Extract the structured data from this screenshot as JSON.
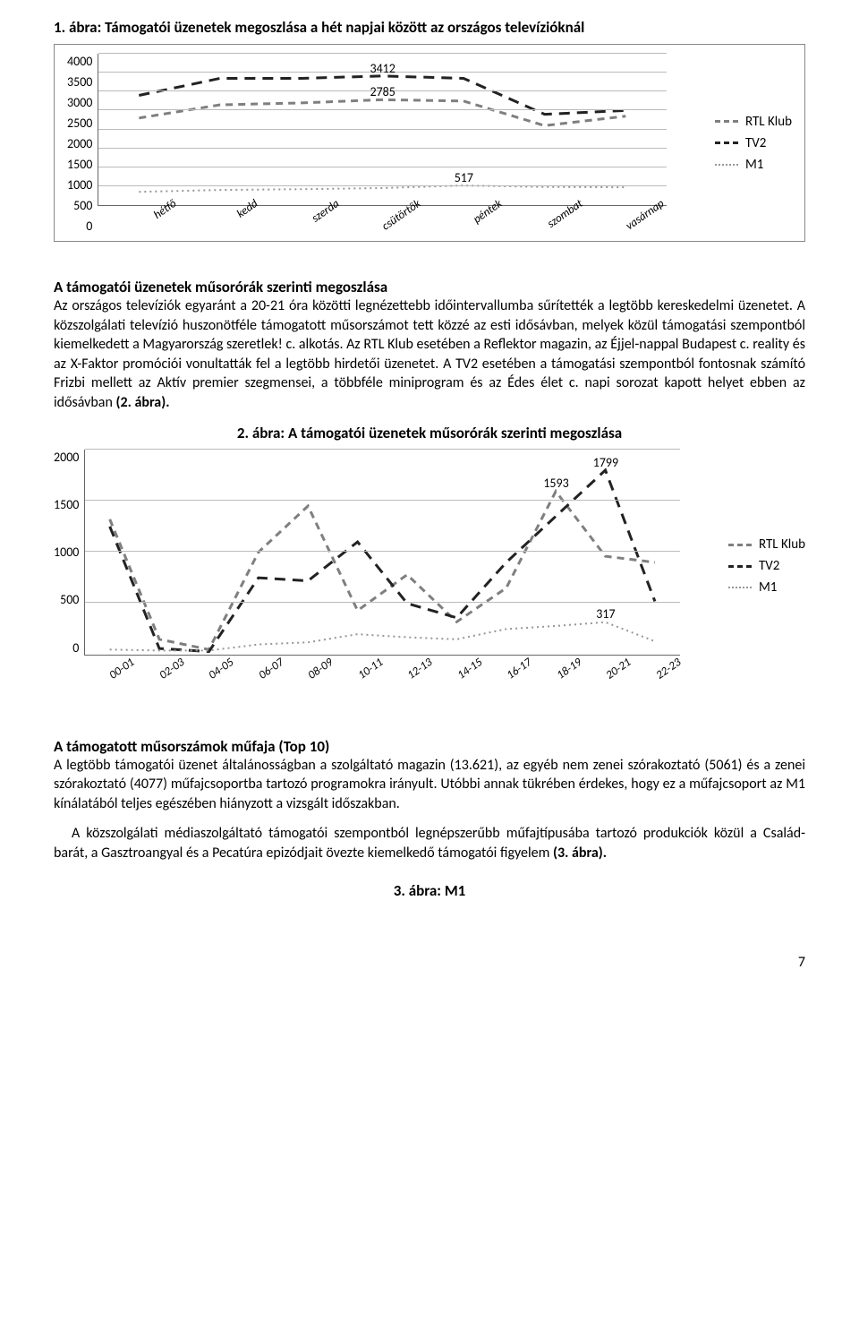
{
  "chart1": {
    "type": "line",
    "title": "1. ábra: Támogatói üzenetek megoszlása a hét napjai között az országos televízióknál",
    "label_fontsize": 14,
    "title_fontsize": 17,
    "background_color": "#ffffff",
    "grid_color": "#bbbbbb",
    "ylim": [
      0,
      4000
    ],
    "ytick_step": 500,
    "yticks": [
      "4000",
      "3500",
      "3000",
      "2500",
      "2000",
      "1500",
      "1000",
      "500",
      "0"
    ],
    "categories": [
      "hétfő",
      "kedd",
      "szerda",
      "csütörtök",
      "péntek",
      "szombat",
      "vasárnap"
    ],
    "series": {
      "RTL Klub": {
        "color": "#7f7f7f",
        "dash": "8,6",
        "width": 3,
        "values": [
          2300,
          2650,
          2700,
          2785,
          2750,
          2100,
          2350
        ]
      },
      "TV2": {
        "color": "#222222",
        "dash": "12,8",
        "width": 3,
        "values": [
          2900,
          3350,
          3350,
          3412,
          3350,
          2400,
          2500
        ]
      },
      "M1": {
        "color": "#969696",
        "dash": "2,4",
        "width": 2,
        "values": [
          350,
          400,
          420,
          450,
          517,
          480,
          470
        ]
      }
    },
    "data_labels": [
      {
        "series": "TV2",
        "index": 3,
        "text": "3412"
      },
      {
        "series": "RTL Klub",
        "index": 3,
        "text": "2785"
      },
      {
        "series": "M1",
        "index": 4,
        "text": "517"
      }
    ],
    "legend": [
      "RTL Klub",
      "TV2",
      "M1"
    ]
  },
  "section1": {
    "heading": "A támogatói üzenetek műsorórák szerinti megoszlása",
    "body": "Az országos televíziók egyaránt a 20-21 óra közötti legnézettebb időintervallumba sűrítették a legtöbb kereskedelmi üzenetet. A közszolgálati televízió huszonötféle támogatott műsorszámot tett közzé az esti idősávban, melyek közül támogatási szempontból kiemelkedett a Magyarország szeretlek! c. alkotás. Az RTL Klub esetében a Reflektor magazin, az Éjjel-nappal Budapest c. reality és az X-Faktor promóciói vonultatták fel a legtöbb hirdetői üzenetet. A TV2 esetében a támogatási szempontból fontosnak számító Frizbi mellett az Aktív premier szegmensei, a többféle miniprogram és az Édes élet c. napi sorozat kapott helyet ebben az idősávban ",
    "body_bold_tail": "(2. ábra)."
  },
  "chart2": {
    "type": "line",
    "title": "2. ábra: A támogatói üzenetek műsorórák szerinti megoszlása",
    "title_fontsize": 17,
    "label_fontsize": 13,
    "background_color": "#ffffff",
    "grid_color": "#bbbbbb",
    "ylim": [
      0,
      2000
    ],
    "ytick_step": 500,
    "yticks": [
      "2000",
      "1500",
      "1000",
      "500",
      "0"
    ],
    "categories": [
      "00-01",
      "02-03",
      "04-05",
      "06-07",
      "08-09",
      "10-11",
      "12-13",
      "14-15",
      "16-17",
      "18-19",
      "20-21",
      "22-23"
    ],
    "series": {
      "RTL Klub": {
        "color": "#7f7f7f",
        "dash": "8,6",
        "width": 3,
        "values": [
          1320,
          150,
          50,
          1000,
          1450,
          430,
          780,
          320,
          650,
          1593,
          960,
          900
        ]
      },
      "TV2": {
        "color": "#222222",
        "dash": "12,8",
        "width": 3,
        "values": [
          1250,
          60,
          30,
          750,
          720,
          1100,
          500,
          360,
          900,
          1350,
          1799,
          520
        ]
      },
      "M1": {
        "color": "#969696",
        "dash": "2,4",
        "width": 2,
        "values": [
          50,
          40,
          40,
          100,
          120,
          200,
          170,
          150,
          250,
          280,
          317,
          130
        ]
      }
    },
    "data_labels": [
      {
        "series": "TV2",
        "index": 10,
        "text": "1799"
      },
      {
        "series": "RTL Klub",
        "index": 9,
        "text": "1593"
      },
      {
        "series": "M1",
        "index": 10,
        "text": "317"
      }
    ],
    "legend": [
      "RTL Klub",
      "TV2",
      "M1"
    ]
  },
  "section2": {
    "heading": "A támogatott műsorszámok műfaja (Top 10)",
    "body1": "A legtöbb támogatói üzenet általánosságban a szolgáltató magazin (13.621), az egyéb nem zenei szórakoztató (5061) és a zenei szórakoztató (4077) műfajcsoportba tartozó programokra irányult. Utóbbi annak tükrében érdekes, hogy ez a műfajcsoport az M1 kínálatából teljes egészében hiányzott a vizsgált időszakban.",
    "body2": "A közszolgálati médiaszolgáltató támogatói szempontból legnépszerűbb műfajtípusába tartozó produkciók közül a Család-barát, a Gasztroangyal és a Pecatúra epizódjait övezte kiemelkedő támogatói figyelem ",
    "body2_bold_tail": "(3. ábra)."
  },
  "fig3_heading": "3. ábra: M1",
  "page_number": "7"
}
